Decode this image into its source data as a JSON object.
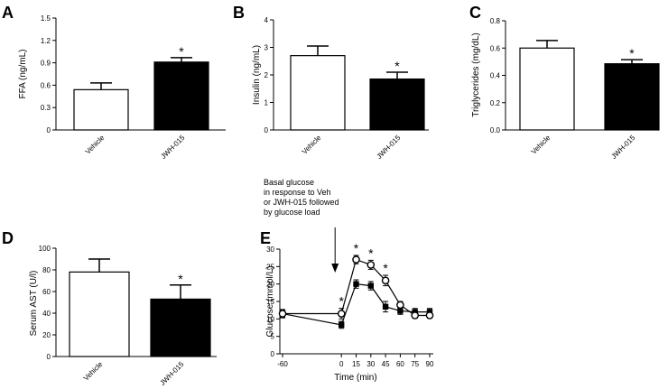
{
  "chart_data": [
    {
      "panel": "A",
      "type": "bar",
      "ylabel": "FFA (ng/mL)",
      "ylim": [
        0,
        1.5
      ],
      "yticks": [
        "0",
        "0.3",
        "0.6",
        "0.9",
        "1.2",
        "1.5"
      ],
      "categories": [
        "Vehicle",
        "JWH-015"
      ],
      "values": [
        0.54,
        0.91
      ],
      "errors": [
        0.09,
        0.06
      ],
      "fills": [
        "#ffffff",
        "#000000"
      ],
      "significance": [
        "",
        "*"
      ]
    },
    {
      "panel": "B",
      "type": "bar",
      "ylabel": "Insulin (ng/mL)",
      "ylim": [
        0,
        4
      ],
      "yticks": [
        "0",
        "1",
        "2",
        "3",
        "4"
      ],
      "categories": [
        "Vehicle",
        "JWH-015"
      ],
      "values": [
        2.7,
        1.85
      ],
      "errors": [
        0.35,
        0.25
      ],
      "fills": [
        "#ffffff",
        "#000000"
      ],
      "significance": [
        "",
        "*"
      ]
    },
    {
      "panel": "C",
      "type": "bar",
      "ylabel": "Triglycerides (mg/dL)",
      "ylim": [
        0,
        0.8
      ],
      "yticks": [
        "0.0",
        "0.2",
        "0.4",
        "0.6",
        "0.8"
      ],
      "categories": [
        "Vehicle",
        "JWH-015"
      ],
      "values": [
        0.6,
        0.485
      ],
      "errors": [
        0.055,
        0.03
      ],
      "fills": [
        "#ffffff",
        "#000000"
      ],
      "significance": [
        "",
        "*"
      ]
    },
    {
      "panel": "D",
      "type": "bar",
      "ylabel": "Serum AST (U/l)",
      "ylim": [
        0,
        100
      ],
      "yticks": [
        "0",
        "20",
        "40",
        "60",
        "80",
        "100"
      ],
      "categories": [
        "Vehicle",
        "JWH-015"
      ],
      "values": [
        78,
        53
      ],
      "errors": [
        12,
        13
      ],
      "fills": [
        "#ffffff",
        "#000000"
      ],
      "significance": [
        "",
        "*"
      ]
    },
    {
      "panel": "E",
      "type": "line",
      "ylabel": "Glucose (mmol/L)",
      "xlabel": "Time (min)",
      "ylim": [
        0,
        30
      ],
      "yticks": [
        "0",
        "5",
        "10",
        "15",
        "20",
        "25",
        "30"
      ],
      "xlim": [
        -60,
        90
      ],
      "x": [
        -60,
        0,
        15,
        30,
        45,
        60,
        75,
        90
      ],
      "xticks": [
        "-60",
        "0",
        "15",
        "30",
        "45",
        "60",
        "75",
        "90"
      ],
      "annotation": [
        "Basal glucose",
        "in response to Veh",
        "or JWH-015 followed",
        "by glucose load"
      ],
      "annotation_x": 0,
      "series": [
        {
          "marker": "open-circle",
          "fill": "#ffffff",
          "values": [
            11.5,
            11.5,
            27,
            25.5,
            21,
            14,
            11,
            11
          ],
          "errors": [
            1.2,
            1.5,
            1.2,
            1.3,
            1.5,
            1.0,
            0.8,
            0.8
          ]
        },
        {
          "marker": "filled-square",
          "fill": "#000000",
          "values": [
            11.5,
            8.3,
            20,
            19.5,
            13.5,
            12.3,
            12,
            12
          ],
          "errors": [
            1.0,
            1.0,
            1.2,
            1.2,
            1.5,
            1.0,
            1.0,
            1.0
          ]
        }
      ],
      "significance_x": [
        0,
        15,
        30,
        45
      ],
      "significance_mark": "*"
    }
  ]
}
